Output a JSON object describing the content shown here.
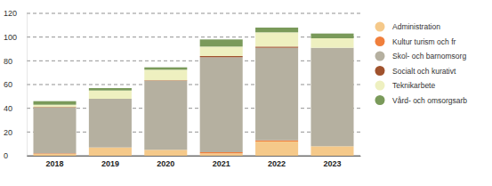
{
  "chart_data": {
    "type": "bar",
    "stacked": true,
    "grid": true,
    "legend": "right",
    "categories": [
      "2018",
      "2019",
      "2020",
      "2021",
      "2022",
      "2023"
    ],
    "ylim": [
      0,
      120
    ],
    "yticks": [
      0,
      20,
      40,
      60,
      80,
      100,
      120
    ],
    "series": [
      {
        "name": "Administration",
        "color": "#f5c98a",
        "values": [
          1.5,
          7,
          5,
          2,
          12,
          8
        ]
      },
      {
        "name": "Kultur turism och fr",
        "color": "#f07f3c",
        "values": [
          0.5,
          0,
          0,
          1,
          1,
          0
        ]
      },
      {
        "name": "Skol- och barnomsorg",
        "color": "#b5b0a0",
        "values": [
          38.5,
          41,
          58,
          80,
          78,
          83
        ]
      },
      {
        "name": "Socialt och kurativt",
        "color": "#a0522d",
        "values": [
          0.5,
          0,
          0.5,
          1,
          1,
          0
        ]
      },
      {
        "name": "Teknikarbete",
        "color": "#eef0c0",
        "values": [
          2,
          7,
          9,
          8,
          12,
          8
        ]
      },
      {
        "name": "Vård- och omsorgsarb",
        "color": "#7a9a5a",
        "values": [
          3,
          2,
          2,
          6,
          4,
          4
        ]
      }
    ]
  }
}
